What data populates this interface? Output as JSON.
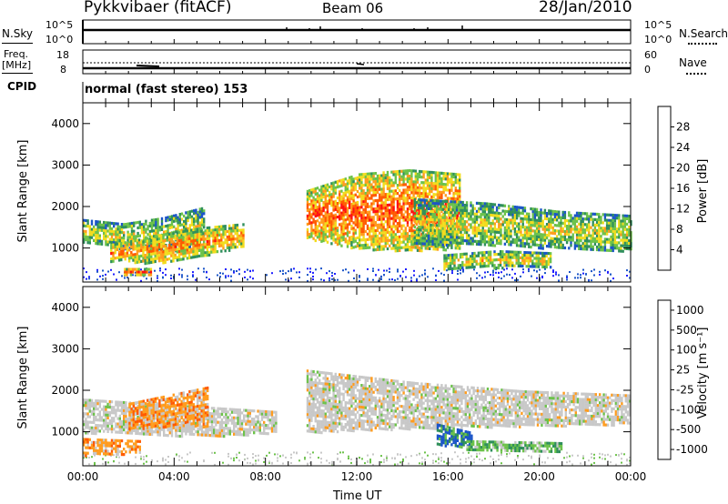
{
  "header": {
    "station": "Pykkvibaer (fitACF)",
    "beam": "Beam 06",
    "date": "28/Jan/2010"
  },
  "panels": {
    "nsky": {
      "label": "N.Sky",
      "left_ticks": [
        "10^5",
        "10^0"
      ],
      "right_ticks": [
        "10^5",
        "10^0"
      ],
      "right_label": "N.Search"
    },
    "freq": {
      "label_top": "Freq.",
      "label_unit": "[MHz]",
      "left_ticks": [
        "18",
        "8"
      ],
      "right_ticks": [
        "60",
        "0"
      ],
      "right_label": "Nave"
    },
    "cpid": {
      "label": "CPID",
      "text": "normal (fast stereo) 153"
    }
  },
  "colors": {
    "power": [
      "#1e1eff",
      "#1b55c8",
      "#2f8f5c",
      "#6cc24a",
      "#f2dc1e",
      "#ff9c1e",
      "#ff5a00",
      "#ff1010"
    ],
    "velocity": [
      "#ff1010",
      "#ff5a00",
      "#ff9c1e",
      "#c8c8c8",
      "#c8c8c8",
      "#6cc24a",
      "#2f8f5c",
      "#1b55c8"
    ]
  },
  "chart_data": [
    {
      "type": "heatmap",
      "name": "power",
      "xlabel": "",
      "ylabel": "Slant Range [km]",
      "xlim": [
        0,
        24
      ],
      "ylim": [
        180,
        4500
      ],
      "y_ticks": [
        1000,
        2000,
        3000,
        4000
      ],
      "y_tick_labels": [
        "1000",
        "2000",
        "3000",
        "4000"
      ],
      "colorbar": {
        "label": "Power [dB]",
        "ticks": [
          "4",
          "8",
          "12",
          "16",
          "20",
          "24",
          "28"
        ]
      },
      "features": [
        {
          "t": [
            0.0,
            5.3
          ],
          "r_low": [
            1150,
            1000,
            950,
            1000
          ],
          "r_high": [
            1700,
            1600,
            1750,
            2000
          ],
          "intensity": 0.55
        },
        {
          "t": [
            1.2,
            7.0
          ],
          "r_low": [
            700,
            650,
            800,
            1050
          ],
          "r_high": [
            1100,
            1300,
            1500,
            1600
          ],
          "intensity": 0.75
        },
        {
          "t": [
            1.8,
            3.0
          ],
          "r_low": [
            380,
            380
          ],
          "r_high": [
            520,
            520
          ],
          "intensity": 0.9
        },
        {
          "t": [
            9.8,
            16.5
          ],
          "r_low": [
            1250,
            1000,
            950,
            1000
          ],
          "r_high": [
            2400,
            2800,
            2900,
            2800
          ],
          "intensity": 0.85
        },
        {
          "t": [
            14.5,
            24.0
          ],
          "r_low": [
            1100,
            1100,
            1000,
            950
          ],
          "r_high": [
            2200,
            2100,
            1900,
            1800
          ],
          "intensity": 0.55
        },
        {
          "t": [
            15.8,
            20.5
          ],
          "r_low": [
            500,
            550,
            550
          ],
          "r_high": [
            850,
            950,
            900
          ],
          "intensity": 0.6
        }
      ]
    },
    {
      "type": "heatmap",
      "name": "velocity",
      "xlabel": "Time UT",
      "ylabel": "Slant Range [km]",
      "xlim": [
        0,
        24
      ],
      "ylim": [
        180,
        4500
      ],
      "x_tick_labels": [
        "00:00",
        "04:00",
        "08:00",
        "12:00",
        "16:00",
        "20:00",
        "00:00"
      ],
      "y_ticks": [
        1000,
        2000,
        3000,
        4000
      ],
      "y_tick_labels": [
        "1000",
        "2000",
        "3000",
        "4000"
      ],
      "colorbar": {
        "label": "Velocity [m s⁻¹]",
        "ticks": [
          "1000",
          "500",
          "100",
          "25",
          "-25",
          "-100",
          "-500",
          "-1000"
        ]
      },
      "features": [
        {
          "t": [
            0.0,
            8.5
          ],
          "r_low": [
            1000,
            950,
            900,
            1000
          ],
          "r_high": [
            1800,
            1700,
            1600,
            1500
          ],
          "intensity": 0.45
        },
        {
          "t": [
            2.0,
            5.5
          ],
          "r_low": [
            1100,
            1150
          ],
          "r_high": [
            1700,
            2100
          ],
          "intensity": 0.2
        },
        {
          "t": [
            0.0,
            2.5
          ],
          "r_low": [
            450,
            500
          ],
          "r_high": [
            850,
            800
          ],
          "intensity": 0.2
        },
        {
          "t": [
            9.8,
            24.0
          ],
          "r_low": [
            1000,
            1100,
            1150,
            1200
          ],
          "r_high": [
            2500,
            2200,
            2000,
            1900
          ],
          "intensity": 0.45
        },
        {
          "t": [
            15.5,
            17.0
          ],
          "r_low": [
            700,
            650
          ],
          "r_high": [
            1200,
            1000
          ],
          "intensity": 0.85
        },
        {
          "t": [
            16.8,
            21.0
          ],
          "r_low": [
            550,
            500
          ],
          "r_high": [
            800,
            750
          ],
          "intensity": 0.65
        }
      ]
    }
  ]
}
